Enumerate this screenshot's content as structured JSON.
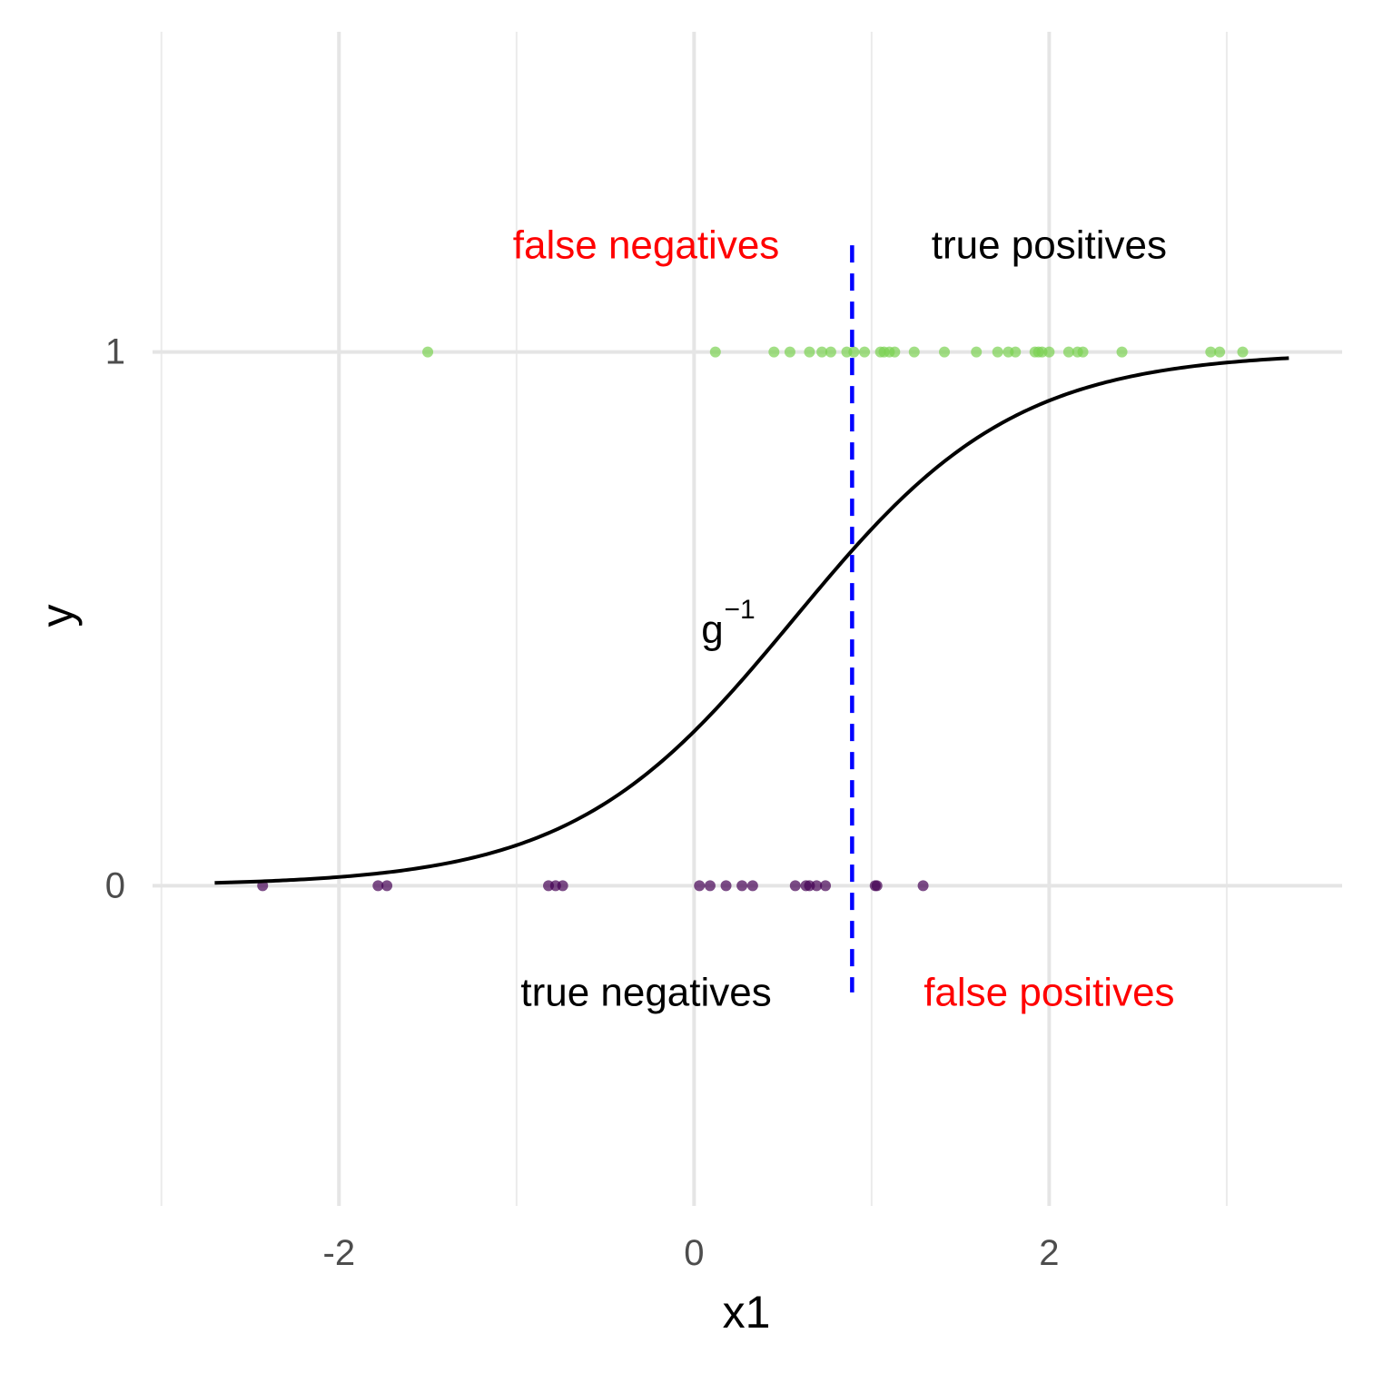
{
  "chart_data": {
    "type": "scatter",
    "xlabel": "x1",
    "ylabel": "y",
    "xlim": [
      -3.05,
      3.65
    ],
    "ylim": [
      -0.6,
      1.6
    ],
    "x_major_ticks": [
      -2,
      0,
      2
    ],
    "x_minor_gridlines": [
      -3,
      -1,
      1,
      3
    ],
    "y_ticks": [
      0,
      1
    ],
    "x_tick_labels": [
      "-2",
      "0",
      "2"
    ],
    "y_tick_labels": [
      "0",
      "1"
    ],
    "grid": true,
    "curve": {
      "name": "g",
      "superscript": "−1",
      "type": "logistic",
      "intercept": -0.9,
      "slope": 1.6,
      "x_range": [
        -2.7,
        3.35
      ],
      "color": "#000000"
    },
    "threshold": {
      "x": 0.89,
      "y_range": [
        -0.2,
        1.2
      ],
      "color": "#0000ff",
      "style": "dashed"
    },
    "quadrant_labels": {
      "false_negatives": {
        "text": "false negatives",
        "color": "#ff0000",
        "x": -0.27,
        "y": 1.2
      },
      "true_positives": {
        "text": "true positives",
        "color": "#000000",
        "x": 2.0,
        "y": 1.2
      },
      "true_negatives": {
        "text": "true negatives",
        "color": "#000000",
        "x": -0.27,
        "y": -0.2
      },
      "false_positives": {
        "text": "false positives",
        "color": "#ff0000",
        "x": 2.0,
        "y": -0.2
      }
    },
    "curve_label_position": {
      "x": 0.18,
      "y": 0.48
    },
    "series": [
      {
        "color": "#7ad151",
        "y": 1,
        "x": [
          -1.5,
          0.12,
          0.45,
          0.54,
          0.65,
          0.72,
          0.77,
          0.86,
          0.9,
          0.96,
          1.05,
          1.07,
          1.1,
          1.13,
          1.24,
          1.41,
          1.59,
          1.71,
          1.77,
          1.81,
          1.92,
          1.94,
          1.96,
          2.0,
          2.11,
          2.16,
          2.19,
          2.41,
          2.91,
          2.96,
          3.09
        ]
      },
      {
        "color": "#440154",
        "y": 0,
        "x": [
          -2.43,
          -1.78,
          -1.73,
          -0.82,
          -0.78,
          -0.74,
          0.03,
          0.09,
          0.18,
          0.27,
          0.33,
          0.57,
          0.63,
          0.65,
          0.69,
          0.74,
          1.02,
          1.03,
          1.29
        ]
      }
    ]
  }
}
